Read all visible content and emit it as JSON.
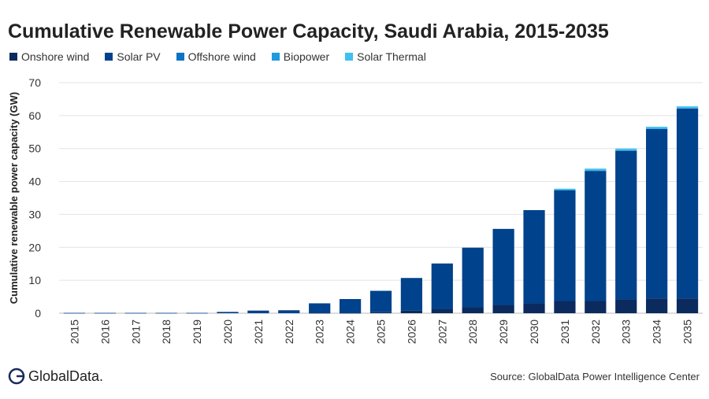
{
  "logo": "GlobalData.",
  "source": "Source: GlobalData Power Intelligence Center",
  "chart_data": {
    "type": "bar",
    "stacked": true,
    "title": "Cumulative Renewable Power Capacity, Saudi Arabia, 2015-2035",
    "xlabel": "",
    "ylabel": "Cumulative renewable power capacity (GW)",
    "ylim": [
      0,
      70
    ],
    "yticks": [
      0,
      10,
      20,
      30,
      40,
      50,
      60,
      70
    ],
    "grid": true,
    "legend_position": "top-left",
    "categories": [
      "2015",
      "2016",
      "2017",
      "2018",
      "2019",
      "2020",
      "2021",
      "2022",
      "2023",
      "2024",
      "2025",
      "2026",
      "2027",
      "2028",
      "2029",
      "2030",
      "2031",
      "2032",
      "2033",
      "2034",
      "2035"
    ],
    "series": [
      {
        "name": "Onshore wind",
        "color": "#0b2a5e",
        "values": [
          0,
          0,
          0,
          0,
          0,
          0,
          0,
          0,
          0.1,
          0.1,
          0.3,
          0.8,
          1.3,
          1.8,
          2.5,
          3.0,
          3.7,
          3.7,
          4.2,
          4.5,
          4.5
        ]
      },
      {
        "name": "Solar PV",
        "color": "#00428c",
        "values": [
          0.1,
          0.1,
          0.1,
          0.1,
          0.1,
          0.4,
          0.8,
          0.9,
          2.9,
          4.2,
          6.5,
          9.9,
          13.8,
          18.1,
          23.1,
          28.3,
          33.6,
          39.5,
          45.1,
          51.4,
          57.6
        ]
      },
      {
        "name": "Offshore wind",
        "color": "#0a74c4",
        "values": [
          0,
          0,
          0,
          0,
          0,
          0,
          0,
          0,
          0,
          0,
          0,
          0,
          0,
          0,
          0,
          0,
          0,
          0,
          0,
          0,
          0
        ]
      },
      {
        "name": "Biopower",
        "color": "#1f9be0",
        "values": [
          0,
          0,
          0,
          0,
          0,
          0,
          0,
          0,
          0,
          0,
          0,
          0,
          0,
          0,
          0,
          0,
          0.2,
          0.2,
          0.2,
          0.2,
          0.2
        ]
      },
      {
        "name": "Solar Thermal",
        "color": "#3fc0f0",
        "values": [
          0,
          0,
          0,
          0,
          0,
          0,
          0,
          0,
          0,
          0,
          0,
          0,
          0,
          0,
          0,
          0,
          0.3,
          0.5,
          0.5,
          0.5,
          0.5
        ]
      }
    ]
  }
}
